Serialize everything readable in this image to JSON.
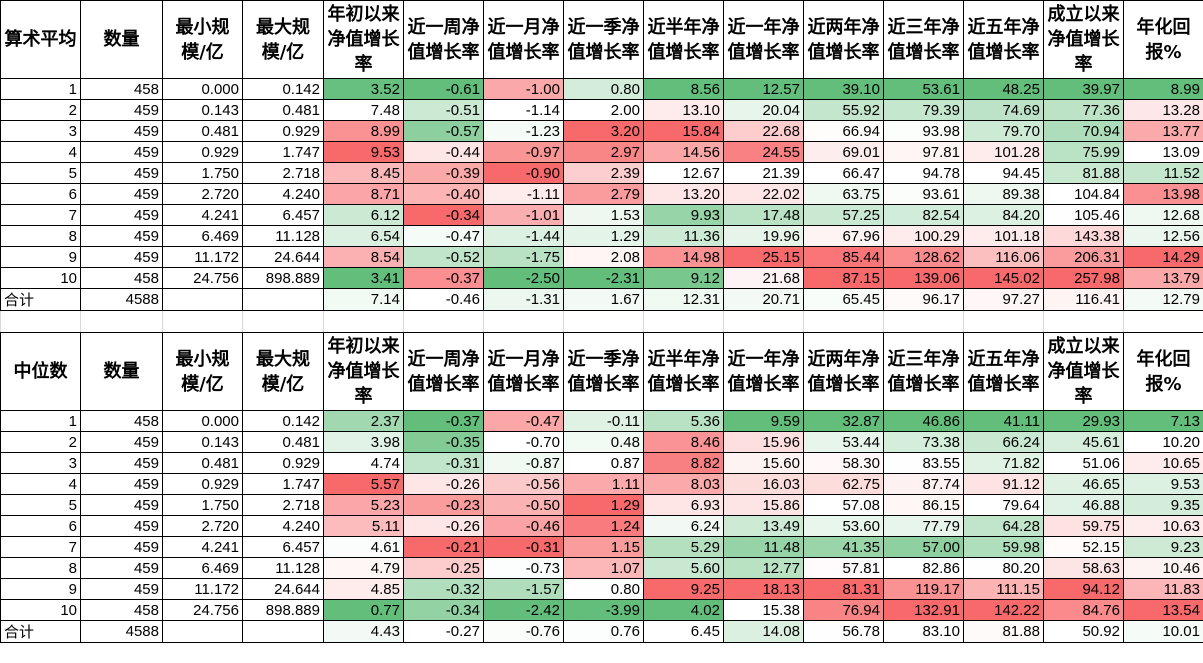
{
  "color_scale": {
    "low": "#63BE7B",
    "mid": "#FFFFFF",
    "high": "#F8696B"
  },
  "tables": [
    {
      "corner": "算术平均",
      "headers": [
        "数量",
        "最小规模/亿",
        "最大规模/亿",
        "年初以来净值增长率",
        "近一周净值增长率",
        "近一月净值增长率",
        "近一季净值增长率",
        "近半年净值增长率",
        "近一年净值增长率",
        "近两年净值增长率",
        "近三年净值增长率",
        "近五年净值增长率",
        "成立以来净值增长率",
        "年化回报%"
      ],
      "rows": [
        [
          "1",
          "458",
          "0.000",
          "0.142",
          "3.52",
          "-0.61",
          "-1.00",
          "0.80",
          "8.56",
          "12.57",
          "39.10",
          "53.61",
          "48.25",
          "39.97",
          "8.99"
        ],
        [
          "2",
          "459",
          "0.143",
          "0.481",
          "7.48",
          "-0.51",
          "-1.14",
          "2.00",
          "13.10",
          "20.04",
          "55.92",
          "79.39",
          "74.69",
          "77.36",
          "13.28"
        ],
        [
          "3",
          "459",
          "0.481",
          "0.929",
          "8.99",
          "-0.57",
          "-1.23",
          "3.20",
          "15.84",
          "22.68",
          "66.94",
          "93.98",
          "79.70",
          "70.94",
          "13.77"
        ],
        [
          "4",
          "459",
          "0.929",
          "1.747",
          "9.53",
          "-0.44",
          "-0.97",
          "2.97",
          "14.56",
          "24.55",
          "69.01",
          "97.81",
          "101.28",
          "75.99",
          "13.09"
        ],
        [
          "5",
          "459",
          "1.750",
          "2.718",
          "8.45",
          "-0.39",
          "-0.90",
          "2.39",
          "12.67",
          "21.39",
          "66.47",
          "94.78",
          "94.45",
          "81.88",
          "11.52"
        ],
        [
          "6",
          "459",
          "2.720",
          "4.240",
          "8.71",
          "-0.40",
          "-1.11",
          "2.79",
          "13.20",
          "22.02",
          "63.75",
          "93.61",
          "89.38",
          "104.84",
          "13.98"
        ],
        [
          "7",
          "459",
          "4.241",
          "6.457",
          "6.12",
          "-0.34",
          "-1.01",
          "1.53",
          "9.93",
          "17.48",
          "57.25",
          "82.54",
          "84.20",
          "105.46",
          "12.68"
        ],
        [
          "8",
          "459",
          "6.469",
          "11.128",
          "6.54",
          "-0.47",
          "-1.44",
          "1.29",
          "11.36",
          "19.96",
          "67.96",
          "100.29",
          "101.18",
          "143.38",
          "12.56"
        ],
        [
          "9",
          "459",
          "11.172",
          "24.644",
          "8.54",
          "-0.52",
          "-1.75",
          "2.08",
          "14.98",
          "25.15",
          "85.44",
          "128.62",
          "116.06",
          "206.31",
          "14.29"
        ],
        [
          "10",
          "458",
          "24.756",
          "898.889",
          "3.41",
          "-0.37",
          "-2.50",
          "-2.31",
          "9.12",
          "21.68",
          "87.15",
          "139.06",
          "145.02",
          "257.98",
          "13.79"
        ]
      ],
      "total": [
        "合计",
        "4588",
        "",
        "",
        "7.14",
        "-0.46",
        "-1.31",
        "1.67",
        "12.31",
        "20.71",
        "65.45",
        "96.17",
        "97.27",
        "116.41",
        "12.79"
      ]
    },
    {
      "corner": "中位数",
      "headers": [
        "数量",
        "最小规模/亿",
        "最大规模/亿",
        "年初以来净值增长率",
        "近一周净值增长率",
        "近一月净值增长率",
        "近一季净值增长率",
        "近半年净值增长率",
        "近一年净值增长率",
        "近两年净值增长率",
        "近三年净值增长率",
        "近五年净值增长率",
        "成立以来净值增长率",
        "年化回报%"
      ],
      "rows": [
        [
          "1",
          "458",
          "0.000",
          "0.142",
          "2.37",
          "-0.37",
          "-0.47",
          "-0.11",
          "5.36",
          "9.59",
          "32.87",
          "46.86",
          "41.11",
          "29.93",
          "7.13"
        ],
        [
          "2",
          "459",
          "0.143",
          "0.481",
          "3.98",
          "-0.35",
          "-0.70",
          "0.48",
          "8.46",
          "15.96",
          "53.44",
          "73.38",
          "66.24",
          "45.61",
          "10.20"
        ],
        [
          "3",
          "459",
          "0.481",
          "0.929",
          "4.74",
          "-0.31",
          "-0.87",
          "0.87",
          "8.82",
          "15.60",
          "58.30",
          "83.55",
          "71.82",
          "51.06",
          "10.65"
        ],
        [
          "4",
          "459",
          "0.929",
          "1.747",
          "5.57",
          "-0.26",
          "-0.56",
          "1.11",
          "8.03",
          "16.03",
          "62.75",
          "87.74",
          "91.12",
          "46.65",
          "9.53"
        ],
        [
          "5",
          "459",
          "1.750",
          "2.718",
          "5.23",
          "-0.23",
          "-0.50",
          "1.29",
          "6.93",
          "15.86",
          "57.08",
          "86.15",
          "79.64",
          "46.88",
          "9.35"
        ],
        [
          "6",
          "459",
          "2.720",
          "4.240",
          "5.11",
          "-0.26",
          "-0.46",
          "1.24",
          "6.24",
          "13.49",
          "53.60",
          "77.79",
          "64.28",
          "59.75",
          "10.63"
        ],
        [
          "7",
          "459",
          "4.241",
          "6.457",
          "4.61",
          "-0.21",
          "-0.31",
          "1.15",
          "5.29",
          "11.48",
          "41.35",
          "57.00",
          "59.98",
          "52.15",
          "9.23"
        ],
        [
          "8",
          "459",
          "6.469",
          "11.128",
          "4.79",
          "-0.25",
          "-0.73",
          "1.07",
          "5.60",
          "12.77",
          "57.81",
          "82.86",
          "80.20",
          "58.63",
          "10.46"
        ],
        [
          "9",
          "459",
          "11.172",
          "24.644",
          "4.85",
          "-0.32",
          "-1.57",
          "0.80",
          "9.25",
          "18.13",
          "81.31",
          "119.17",
          "111.15",
          "94.12",
          "11.83"
        ],
        [
          "10",
          "458",
          "24.756",
          "898.889",
          "0.77",
          "-0.34",
          "-2.42",
          "-3.99",
          "4.02",
          "15.38",
          "76.94",
          "132.91",
          "142.22",
          "84.76",
          "13.54"
        ]
      ],
      "total": [
        "合计",
        "4588",
        "",
        "",
        "4.43",
        "-0.27",
        "-0.76",
        "0.76",
        "6.45",
        "14.08",
        "56.78",
        "83.10",
        "81.88",
        "50.92",
        "10.01"
      ]
    }
  ]
}
